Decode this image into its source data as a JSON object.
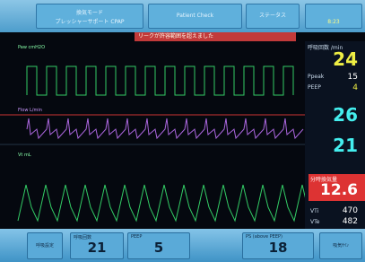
{
  "header": {
    "mode_label": "換気モード",
    "mode": "プレッシャーサポート CPAP",
    "patient": "Patient Check",
    "menu": "ステータス",
    "alarm": "リークが許容範囲を超えました",
    "clock": "8:23"
  },
  "waveforms": [
    {
      "label": "Paw cmH2O"
    },
    {
      "label": "Flow L/min"
    },
    {
      "label": "Vt mL"
    }
  ],
  "monitor": {
    "rate_label": "呼吸回数 /min",
    "rate": "24",
    "ppeak_label": "Ppeak",
    "ppeak": "15",
    "peep_label": "PEEP",
    "peep": "4",
    "spo2": "26",
    "etco2": "21",
    "mv_label": "分時換気量",
    "mv": "12.6",
    "vti_label": "VTi",
    "vti": "470",
    "vte_label": "VTe",
    "vte": "482"
  },
  "footer": {
    "settings_button": "呼吸設定",
    "settings": [
      {
        "label": "呼吸回数",
        "value": "21"
      },
      {
        "label": "PEEP",
        "value": "5"
      },
      {
        "label": "PS (above PEEP)",
        "value": "18"
      }
    ],
    "more_button": "吸気ｻｲﾝ"
  }
}
